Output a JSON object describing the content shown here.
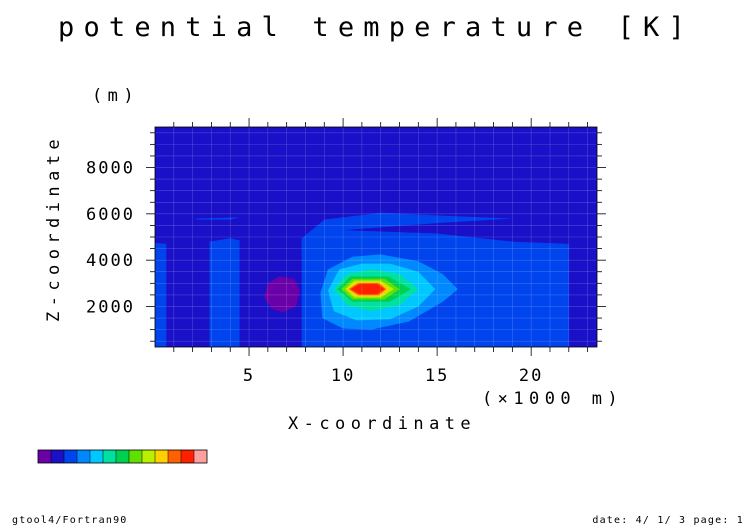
{
  "chart_data": {
    "type": "heatmap",
    "title": "potential temperature [K]",
    "xlabel": "X-coordinate",
    "ylabel": "Z-coordinate",
    "x_unit": "(×1000 m)",
    "y_unit": "(m)",
    "xlim": [
      0,
      23.5
    ],
    "ylim": [
      250,
      9750
    ],
    "x_ticks": [
      5,
      10,
      15,
      20
    ],
    "y_ticks": [
      2000,
      4000,
      6000,
      8000
    ],
    "background_level": 1,
    "colorbar": [
      "#6a00a8",
      "#1a10c8",
      "#0044ee",
      "#0088ff",
      "#00c8ff",
      "#00e0a0",
      "#00d050",
      "#60e000",
      "#b8f000",
      "#ffd000",
      "#ff6000",
      "#ff2000",
      "#ffa0a0"
    ],
    "regions": [
      {
        "level": 2,
        "points": [
          [
            0,
            4750
          ],
          [
            0.6,
            4700
          ],
          [
            0.6,
            250
          ],
          [
            0,
            250
          ]
        ]
      },
      {
        "level": 2,
        "points": [
          [
            2.2,
            5800
          ],
          [
            4.5,
            5850
          ],
          [
            4,
            5750
          ],
          [
            2.2,
            5750
          ]
        ]
      },
      {
        "level": 2,
        "points": [
          [
            2.9,
            4800
          ],
          [
            4,
            4950
          ],
          [
            4.5,
            4850
          ],
          [
            4.5,
            250
          ],
          [
            2.9,
            250
          ]
        ]
      },
      {
        "level": 2,
        "points": [
          [
            7.8,
            4950
          ],
          [
            9,
            5750
          ],
          [
            12,
            6050
          ],
          [
            16,
            5900
          ],
          [
            19,
            5800
          ],
          [
            15,
            5600
          ],
          [
            10,
            5300
          ],
          [
            8,
            4400
          ],
          [
            7.8,
            4100
          ],
          [
            7.8,
            250
          ]
        ]
      },
      {
        "level": 2,
        "points": [
          [
            7.8,
            4950
          ],
          [
            8,
            5050
          ],
          [
            8.8,
            5050
          ],
          [
            10,
            5300
          ],
          [
            15,
            5150
          ],
          [
            19,
            4800
          ],
          [
            22,
            4700
          ],
          [
            22,
            250
          ],
          [
            7.8,
            250
          ]
        ]
      },
      {
        "level": 0,
        "points": [
          [
            6,
            3000
          ],
          [
            6.6,
            3300
          ],
          [
            7.4,
            3200
          ],
          [
            7.7,
            2700
          ],
          [
            7.5,
            2000
          ],
          [
            6.8,
            1750
          ],
          [
            6.2,
            1900
          ],
          [
            5.8,
            2400
          ]
        ]
      },
      {
        "level": 3,
        "points": [
          [
            8.8,
            2600
          ],
          [
            9.2,
            3600
          ],
          [
            10.5,
            4150
          ],
          [
            12,
            4250
          ],
          [
            14,
            3950
          ],
          [
            15.3,
            3400
          ],
          [
            16.1,
            2750
          ],
          [
            15.3,
            2200
          ],
          [
            13.5,
            1350
          ],
          [
            11.5,
            1000
          ],
          [
            10,
            1050
          ],
          [
            8.9,
            1500
          ]
        ]
      },
      {
        "level": 4,
        "points": [
          [
            9.2,
            2700
          ],
          [
            9.8,
            3600
          ],
          [
            11,
            3850
          ],
          [
            12.5,
            3850
          ],
          [
            14,
            3500
          ],
          [
            14.9,
            2750
          ],
          [
            14,
            2000
          ],
          [
            12.5,
            1450
          ],
          [
            10.7,
            1400
          ],
          [
            9.5,
            1800
          ]
        ]
      },
      {
        "level": 5,
        "points": [
          [
            9.5,
            2750
          ],
          [
            10.2,
            3400
          ],
          [
            11.5,
            3600
          ],
          [
            13,
            3400
          ],
          [
            14,
            2750
          ],
          [
            13,
            2050
          ],
          [
            11.5,
            1800
          ],
          [
            10.2,
            2050
          ]
        ]
      },
      {
        "level": 6,
        "points": [
          [
            9.7,
            2750
          ],
          [
            10.4,
            3300
          ],
          [
            12.4,
            3300
          ],
          [
            13.6,
            2750
          ],
          [
            12.5,
            2200
          ],
          [
            10.5,
            2200
          ]
        ]
      },
      {
        "level": 7,
        "points": [
          [
            9.9,
            2750
          ],
          [
            10.5,
            3200
          ],
          [
            12.2,
            3200
          ],
          [
            13,
            2750
          ],
          [
            12.2,
            2300
          ],
          [
            10.5,
            2300
          ]
        ]
      },
      {
        "level": 8,
        "points": [
          [
            10.1,
            2750
          ],
          [
            10.6,
            3120
          ],
          [
            12,
            3120
          ],
          [
            12.7,
            2750
          ],
          [
            12,
            2380
          ],
          [
            10.6,
            2380
          ]
        ]
      },
      {
        "level": 9,
        "points": [
          [
            10.2,
            2750
          ],
          [
            10.7,
            3050
          ],
          [
            12,
            3050
          ],
          [
            12.5,
            2750
          ],
          [
            12,
            2450
          ],
          [
            10.7,
            2450
          ]
        ]
      },
      {
        "level": 10,
        "points": [
          [
            10.3,
            2750
          ],
          [
            10.8,
            3020
          ],
          [
            11.9,
            3020
          ],
          [
            12.3,
            2750
          ],
          [
            11.9,
            2480
          ],
          [
            10.8,
            2480
          ]
        ]
      },
      {
        "level": 11,
        "points": [
          [
            10.4,
            2750
          ],
          [
            10.9,
            2980
          ],
          [
            11.8,
            2980
          ],
          [
            12.2,
            2750
          ],
          [
            11.8,
            2520
          ],
          [
            10.9,
            2520
          ]
        ]
      }
    ]
  },
  "footer": {
    "left": "gtool4/Fortran90",
    "right": "date: 4/ 1/ 3 page: 1"
  }
}
